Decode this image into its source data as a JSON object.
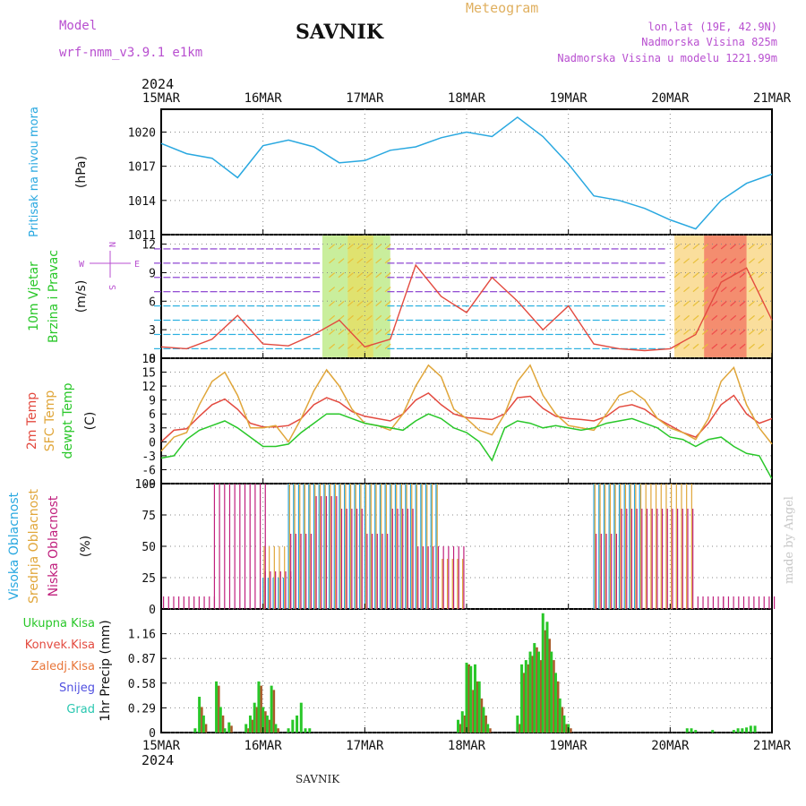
{
  "header": {
    "model_label": "Model",
    "model_name": "wrf-nmm_v3.9.1 e1km",
    "station": "SAVNIK",
    "product": "Meteogram",
    "lonlat": "lon,lat (19E, 42.9N)",
    "altitude": "Nadmorska Visina 825m",
    "model_altitude": "Nadmorska Visina u modelu 1221.99m",
    "year_top": "2024",
    "year_bottom": "2024",
    "footer_station": "SAVNIK",
    "credit": "made by Angel"
  },
  "colors": {
    "pressure": "#29a8e0",
    "temp2m": "#e34a3f",
    "sfc": "#e0a63a",
    "dew": "#29c729",
    "high_cloud": "#29a8e0",
    "mid_cloud": "#e0a63a",
    "low_cloud": "#c0207d",
    "purple": "#b84fd0",
    "gold": "#e0b060"
  },
  "days": [
    "15MAR",
    "16MAR",
    "17MAR",
    "18MAR",
    "19MAR",
    "20MAR",
    "21MAR"
  ],
  "chart_data": [
    {
      "type": "line",
      "panel": "pressure",
      "ylabel_name": "Pritisak na nivou mora",
      "ylabel_unit": "(hPa)",
      "yticks": [
        1011,
        1014,
        1017,
        1020
      ],
      "ylim": [
        1011,
        1022
      ],
      "x": [
        0,
        6,
        12,
        18,
        24,
        30,
        36,
        42,
        48,
        54,
        60,
        66,
        72,
        78,
        84,
        90,
        96,
        102,
        108,
        114,
        120,
        126,
        132,
        138,
        144
      ],
      "series": [
        {
          "values": [
            1019.0,
            1018.1,
            1017.7,
            1016.0,
            1018.8,
            1019.3,
            1018.7,
            1017.3,
            1017.5,
            1018.4,
            1018.7,
            1019.5,
            1020.0,
            1019.6,
            1021.3,
            1019.6,
            1017.2,
            1014.4,
            1014.0,
            1013.3,
            1012.3,
            1011.5,
            1014.0,
            1015.5,
            1016.3
          ]
        }
      ]
    },
    {
      "type": "line",
      "panel": "wind",
      "ylabel_name": "10m Vjetar",
      "ylabel_name2": "Brzina i Pravac",
      "ylabel_unit": "(m/s)",
      "compass": [
        "W",
        "E",
        "N",
        "S"
      ],
      "yticks": [
        0,
        3,
        6,
        9,
        12
      ],
      "ylim": [
        0,
        13
      ],
      "x": [
        0,
        6,
        12,
        18,
        24,
        30,
        36,
        42,
        48,
        54,
        60,
        66,
        72,
        78,
        84,
        90,
        96,
        102,
        108,
        114,
        120,
        126,
        132,
        138,
        144
      ],
      "series": [
        {
          "values": [
            1.2,
            1.0,
            2.0,
            4.5,
            1.5,
            1.3,
            2.5,
            4.0,
            1.2,
            2.0,
            9.8,
            6.5,
            4.8,
            8.5,
            6.0,
            3.0,
            5.5,
            1.5,
            1.0,
            0.8,
            1.0,
            2.5,
            8.0,
            9.5,
            4.0
          ]
        }
      ]
    },
    {
      "type": "line",
      "panel": "temperature",
      "ylabel_names": [
        "2m Temp",
        "SFC Temp",
        "dewpt Temp"
      ],
      "ylabel_unit": "(C)",
      "yticks": [
        -9,
        -6,
        -3,
        0,
        3,
        6,
        9,
        12,
        15,
        18
      ],
      "ylim": [
        -9,
        18
      ],
      "x": [
        0,
        3,
        6,
        9,
        12,
        15,
        18,
        21,
        24,
        27,
        30,
        33,
        36,
        39,
        42,
        45,
        48,
        51,
        54,
        57,
        60,
        63,
        66,
        69,
        72,
        75,
        78,
        81,
        84,
        87,
        90,
        93,
        96,
        99,
        102,
        105,
        108,
        111,
        114,
        117,
        120,
        123,
        126,
        129,
        132,
        135,
        138,
        141,
        144
      ],
      "series": [
        {
          "name": "2m Temp",
          "values": [
            0,
            2.5,
            2.8,
            5.5,
            8.0,
            9.2,
            7.0,
            4.0,
            3.2,
            3.2,
            3.5,
            5.0,
            8.0,
            9.5,
            8.5,
            6.5,
            5.5,
            5.0,
            4.5,
            6.0,
            9.0,
            10.5,
            8.0,
            6.0,
            5.2,
            5.0,
            4.8,
            6.0,
            9.5,
            9.8,
            7.2,
            5.5,
            5.0,
            4.8,
            4.5,
            5.5,
            7.5,
            8.0,
            7.0,
            5.0,
            3.5,
            2.0,
            1.0,
            4.0,
            8.0,
            10.0,
            6.0,
            4.0,
            5.0
          ]
        },
        {
          "name": "SFC Temp",
          "values": [
            -2,
            1.0,
            2.0,
            8.0,
            13.0,
            15.0,
            10.0,
            3.0,
            3.0,
            3.5,
            0.0,
            5.0,
            11.0,
            15.5,
            12.0,
            7.0,
            4.0,
            3.5,
            2.5,
            6.0,
            12.0,
            16.5,
            14.0,
            7.0,
            5.0,
            2.5,
            1.5,
            6.0,
            13.0,
            16.5,
            10.0,
            6.0,
            3.5,
            3.0,
            2.5,
            6.0,
            10.0,
            11.0,
            9.0,
            5.0,
            3.0,
            2.0,
            0.5,
            5.0,
            13.0,
            16.0,
            8.0,
            3.0,
            -0.5
          ]
        },
        {
          "name": "dewpt Temp",
          "values": [
            -3.5,
            -3.0,
            0.5,
            2.5,
            3.5,
            4.5,
            3.0,
            1.0,
            -1.0,
            -1.0,
            -0.5,
            2.0,
            4.0,
            6.0,
            6.0,
            5.0,
            4.0,
            3.5,
            3.0,
            2.5,
            4.5,
            6.0,
            5.0,
            3.0,
            2.0,
            0.0,
            -4.0,
            3.0,
            4.5,
            4.0,
            3.0,
            3.5,
            3.0,
            2.5,
            3.0,
            4.0,
            4.5,
            5.0,
            4.0,
            3.0,
            1.0,
            0.5,
            -1.0,
            0.5,
            1.0,
            -1.0,
            -2.5,
            -3.0,
            -8.0
          ]
        }
      ]
    },
    {
      "type": "bar",
      "panel": "clouds",
      "ylabel_names": [
        "Visoka Oblacnost",
        "Srednja Oblacnost",
        "Niska Oblacnost"
      ],
      "ylabel_unit": "(%)",
      "yticks": [
        0,
        25,
        50,
        75,
        100
      ],
      "ylim": [
        0,
        100
      ],
      "x": [
        0,
        12,
        24,
        30,
        36,
        42,
        48,
        54,
        60,
        66,
        72,
        84,
        96,
        102,
        108,
        114,
        120,
        126,
        132,
        144
      ],
      "series": [
        {
          "name": "Visoka Oblacnost",
          "values": [
            0,
            0,
            25,
            100,
            100,
            100,
            100,
            100,
            100,
            0,
            0,
            0,
            0,
            100,
            100,
            0,
            0,
            0,
            0,
            0
          ]
        },
        {
          "name": "Srednja Oblacnost",
          "values": [
            0,
            0,
            50,
            100,
            100,
            100,
            100,
            100,
            100,
            40,
            0,
            0,
            0,
            100,
            100,
            100,
            100,
            0,
            0,
            0
          ]
        },
        {
          "name": "Niska Oblacnost",
          "values": [
            10,
            100,
            30,
            60,
            90,
            80,
            60,
            80,
            50,
            50,
            0,
            0,
            0,
            60,
            80,
            80,
            80,
            10,
            10,
            0
          ]
        }
      ]
    },
    {
      "type": "bar",
      "panel": "precip",
      "ylabel_unit": "1hr Precip (mm)",
      "legend": [
        "Ukupna Kisa",
        "Konvek.Kisa",
        "Zaledj.Kisa",
        "Snijeg",
        "Grad"
      ],
      "legend_colors": [
        "#29c729",
        "#e34a3f",
        "#e8763a",
        "#5050e0",
        "#29c7b0"
      ],
      "yticks": [
        0,
        0.29,
        0.58,
        0.87,
        1.16
      ],
      "ylim": [
        0,
        1.45
      ],
      "x": [
        8,
        9,
        10,
        13,
        14,
        15,
        16,
        20,
        21,
        22,
        23,
        24,
        25,
        26,
        27,
        30,
        31,
        32,
        33,
        34,
        35,
        36,
        70,
        71,
        72,
        73,
        74,
        75,
        76,
        77,
        84,
        85,
        86,
        87,
        88,
        89,
        90,
        91,
        92,
        93,
        94,
        95,
        96,
        124,
        125,
        126,
        130,
        135,
        136,
        137,
        138,
        139,
        140
      ],
      "series": [
        {
          "name": "Ukupna Kisa",
          "values": [
            0.05,
            0.42,
            0.2,
            0.6,
            0.3,
            0.05,
            0.12,
            0.1,
            0.2,
            0.35,
            0.6,
            0.3,
            0.2,
            0.55,
            0.1,
            0.05,
            0.15,
            0.2,
            0.35,
            0.05,
            0.05,
            0.0,
            0.15,
            0.25,
            0.82,
            0.78,
            0.8,
            0.6,
            0.3,
            0.1,
            0.2,
            0.8,
            0.85,
            0.95,
            1.05,
            0.95,
            1.4,
            1.3,
            0.95,
            0.7,
            0.4,
            0.2,
            0.1,
            0.05,
            0.05,
            0.03,
            0.03,
            0.03,
            0.05,
            0.05,
            0.06,
            0.08,
            0.08
          ]
        },
        {
          "name": "Konvek.Kisa",
          "values": [
            0,
            0.3,
            0.1,
            0.55,
            0.2,
            0,
            0.08,
            0.05,
            0.15,
            0.3,
            0.55,
            0.25,
            0.15,
            0.5,
            0.05,
            0,
            0,
            0,
            0,
            0,
            0,
            0,
            0.1,
            0.2,
            0.8,
            0.5,
            0.6,
            0.4,
            0.2,
            0.05,
            0.1,
            0.7,
            0.8,
            0.9,
            1.0,
            0.85,
            1.2,
            1.1,
            0.85,
            0.6,
            0.3,
            0.1,
            0.05,
            0,
            0,
            0,
            0,
            0,
            0,
            0,
            0,
            0,
            0
          ]
        }
      ]
    }
  ]
}
